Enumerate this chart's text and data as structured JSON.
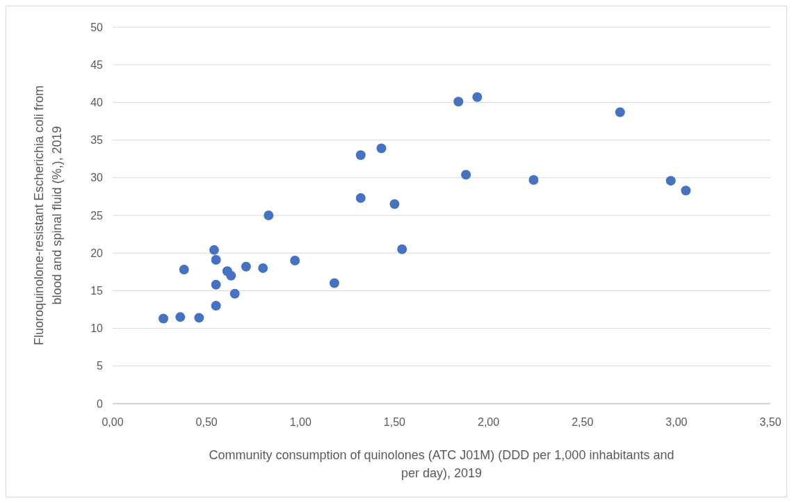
{
  "chart_data": {
    "type": "scatter",
    "xlabel": "Community consumption of quinolones (ATC J01M) (DDD per 1,000 inhabitants and per day), 2019",
    "ylabel": "Fluoroquinolone-resistant Escherichia coli from blood and spinal fluid (%,), 2019",
    "x": [
      0.27,
      0.36,
      0.38,
      0.46,
      0.54,
      0.55,
      0.55,
      0.55,
      0.61,
      0.63,
      0.65,
      0.71,
      0.8,
      0.83,
      0.97,
      1.18,
      1.32,
      1.32,
      1.43,
      1.5,
      1.54,
      1.84,
      1.88,
      1.94,
      2.24,
      2.7,
      2.97,
      3.05
    ],
    "series": [
      {
        "color": "#4472c4",
        "values": [
          11.3,
          11.5,
          17.8,
          11.4,
          20.4,
          19.1,
          15.8,
          13.0,
          17.6,
          17.0,
          14.6,
          18.2,
          18.0,
          25.0,
          19.0,
          16.0,
          33.0,
          27.3,
          33.9,
          26.5,
          20.5,
          40.1,
          30.4,
          40.7,
          29.7,
          38.7,
          29.6,
          28.3
        ]
      }
    ],
    "xlim": [
      0,
      3.5
    ],
    "xticks": [
      {
        "value": 0,
        "label": "0,00"
      },
      {
        "value": 0.5,
        "label": "0,50"
      },
      {
        "value": 1,
        "label": "1,00"
      },
      {
        "value": 1.5,
        "label": "1,50"
      },
      {
        "value": 2,
        "label": "2,00"
      },
      {
        "value": 2.5,
        "label": "2,50"
      },
      {
        "value": 3,
        "label": "3,00"
      },
      {
        "value": 3.5,
        "label": "3,50"
      }
    ],
    "ylim": [
      0,
      50
    ],
    "yticks": [
      0,
      5,
      10,
      15,
      20,
      25,
      30,
      35,
      40,
      45,
      50
    ],
    "grid": "y",
    "marker": "circle"
  }
}
